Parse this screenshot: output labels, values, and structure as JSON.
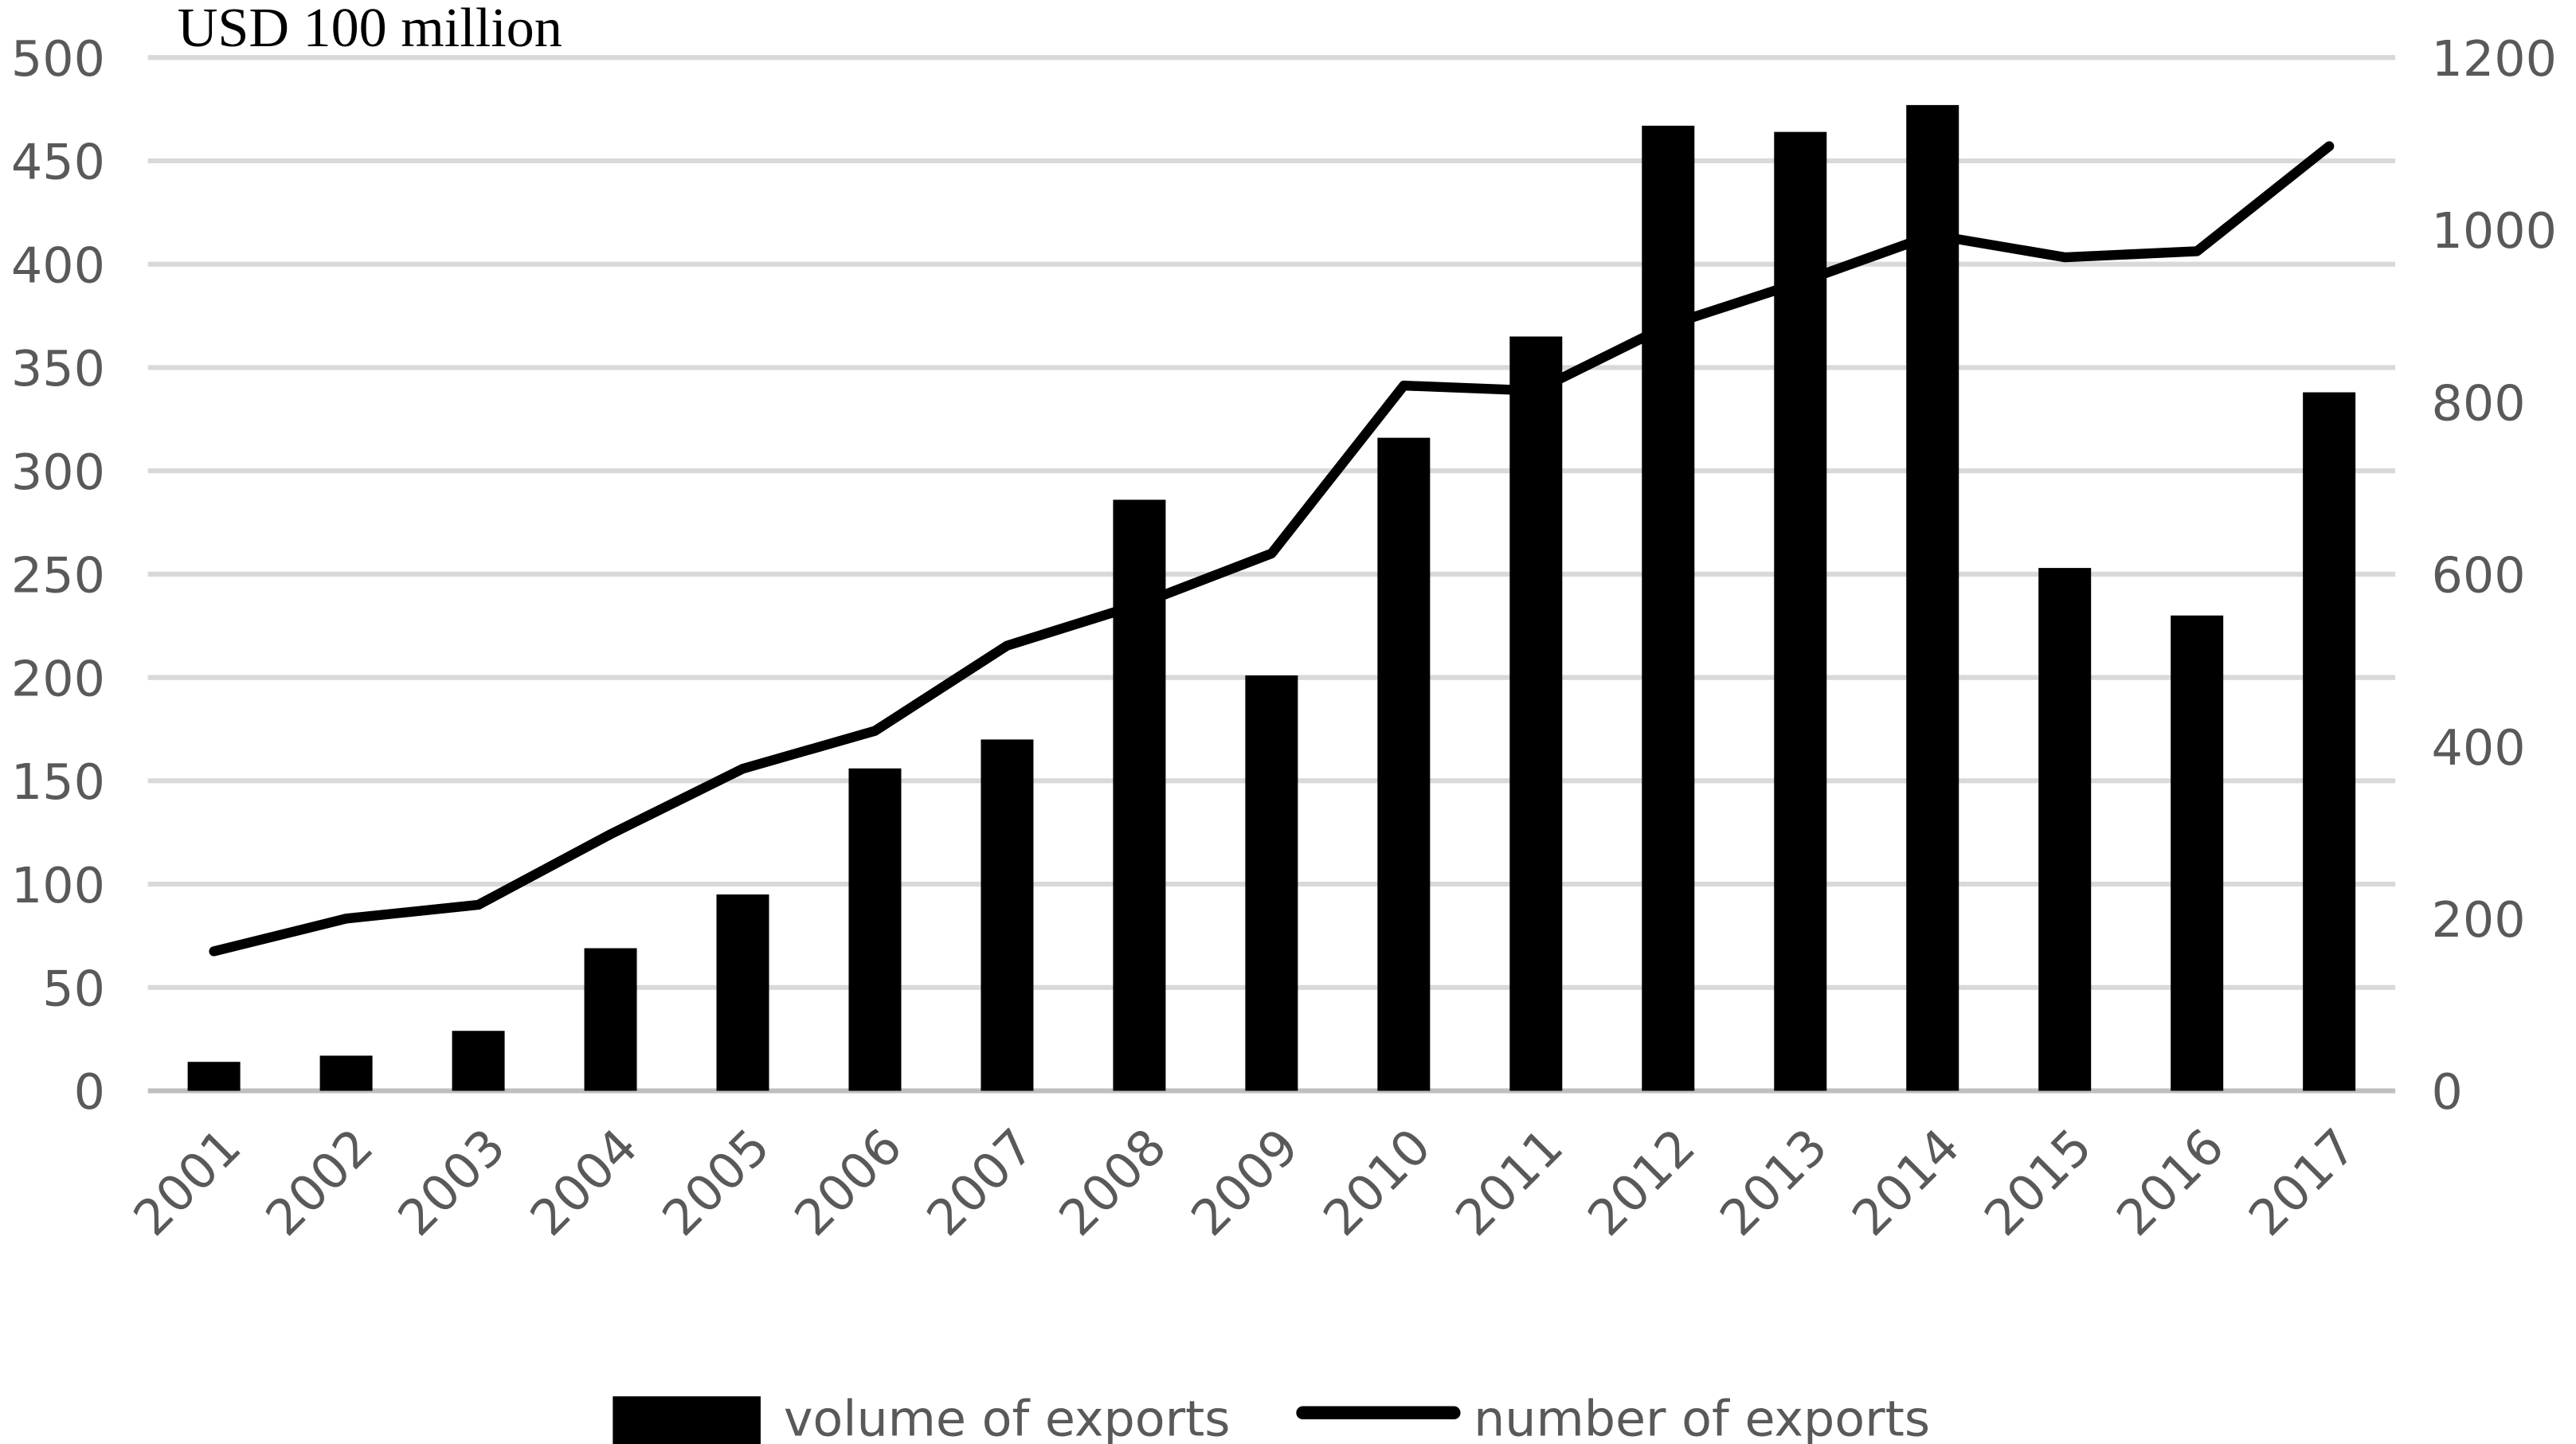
{
  "chart_data": {
    "type": "bar+line",
    "title": "",
    "y_left_label": "USD 100 million",
    "categories": [
      "2001",
      "2002",
      "2003",
      "2004",
      "2005",
      "2006",
      "2007",
      "2008",
      "2009",
      "2010",
      "2011",
      "2012",
      "2013",
      "2014",
      "2015",
      "2016",
      "2017"
    ],
    "series": [
      {
        "name": "volume of exports",
        "type": "bar",
        "axis": "left",
        "color": "#000000",
        "values": [
          14,
          17,
          29,
          69,
          95,
          156,
          170,
          286,
          201,
          316,
          365,
          467,
          464,
          477,
          253,
          230,
          338
        ]
      },
      {
        "name": "number of exports",
        "type": "line",
        "axis": "right",
        "color": "#000000",
        "values": [
          162,
          200,
          216,
          298,
          374,
          418,
          517,
          565,
          624,
          819,
          813,
          889,
          939,
          994,
          968,
          975,
          1097
        ]
      }
    ],
    "y_left": {
      "min": 0,
      "max": 500,
      "ticks": [
        0,
        50,
        100,
        150,
        200,
        250,
        300,
        350,
        400,
        450,
        500
      ]
    },
    "y_right": {
      "min": 0,
      "max": 1200,
      "ticks": [
        0,
        200,
        400,
        600,
        800,
        1000,
        1200
      ]
    },
    "grid": true,
    "legend_position": "bottom"
  }
}
